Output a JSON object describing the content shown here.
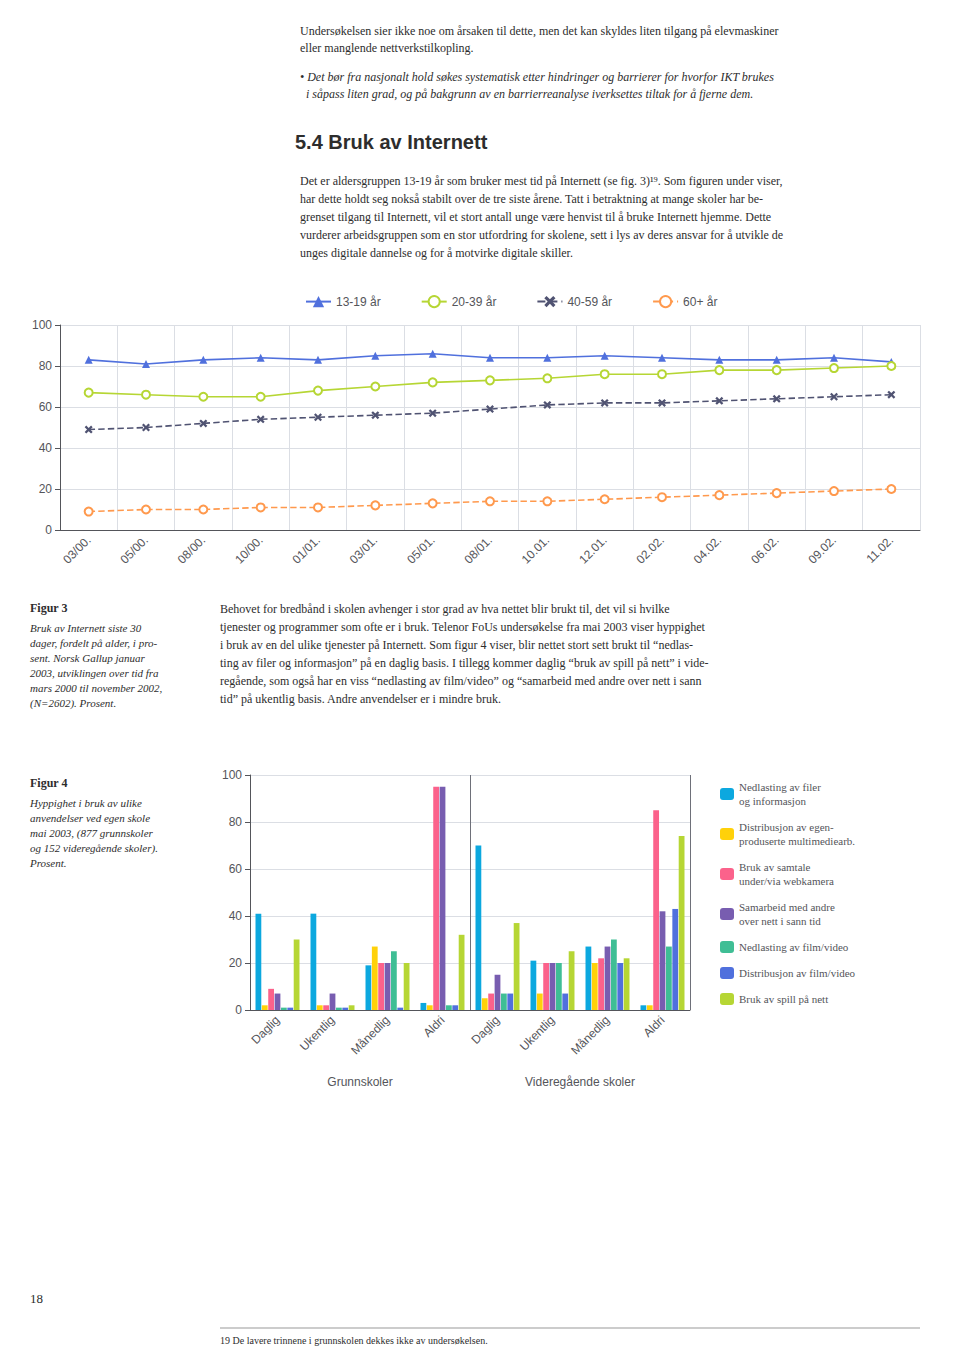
{
  "chart_data": [
    {
      "type": "line",
      "title": "Figur 3",
      "subtitle": "Bruk av Internett siste 30\ndager, fordelt på alder, i pro-\nsent. Norsk Gallup januar\n2003, utviklingen over tid fra\nmars 2000 til november 2002,\n(N=2602). Prosent.",
      "annotations": [
        "Undersøkelsen sier ikke noe om årsaken til dette, men det kan skyldes liten tilgang på elevmaskiner\neller manglende nettverkstilkopling.",
        "• Det bør fra nasjonalt hold søkes systematisk etter hindringer og barrierer for hvorfor IKT brukes\n  i såpass liten grad, og på bakgrunn av en barrierreanalyse iverksettes tiltak for å fjerne dem.",
        "5.4 Bruk av Internett",
        "Det er aldersgruppen 13-19 år som bruker mest tid på Internett (se fig. 3)¹⁹. Som figuren under viser,\nhar dette holdt seg nokså stabilt over de tre siste årene. Tatt i betraktning at mange skoler har be-\ngrenset tilgang til Internett, vil et stort antall unge være henvist til å bruke Internett hjemme. Dette\nvurderer arbeidsgruppen som en stor utfordring for skolene, sett i lys av deres ansvar for å utvikle de\nunges digitale dannelse og for å motvirke digitale skiller.",
        "Behovet for bredbånd i skolen avhenger i stor grad av hva nettet blir brukt til, det vil si hvilke\ntjenester og programmer som ofte er i bruk. Telenor FoUs undersøkelse fra mai 2003 viser hyppighet\ni bruk av en del ulike tjenester på Internett. Som figur 4 viser, blir nettet stort sett brukt til “nedlas-\nting av filer og informasjon” på en daglig basis. I tillegg kommer daglig “bruk av spill på nett” i vide-\nregående, som også har en viss “nedlasting av film/video” og “samarbeid med andre over nett i sann\ntid” på ukentlig basis. Andre anvendelser er i mindre bruk."
      ],
      "categories": [
        "03/00.",
        "05/00.",
        "08/00.",
        "10/00.",
        "01/01.",
        "03/01.",
        "05/01.",
        "08/01.",
        "10.01.",
        "12.01.",
        "02.02.",
        "04.02.",
        "06.02.",
        "09.02.",
        "11.02."
      ],
      "series": [
        {
          "name": "13-19 år",
          "marker": "triangle",
          "line_style": "solid",
          "values": [
            83,
            81,
            83,
            84,
            83,
            85,
            86,
            84,
            84,
            85,
            84,
            83,
            83,
            84,
            82
          ]
        },
        {
          "name": "20-39 år",
          "marker": "circle",
          "line_style": "solid",
          "values": [
            67,
            66,
            65,
            65,
            68,
            70,
            72,
            73,
            74,
            76,
            76,
            78,
            78,
            79,
            80
          ]
        },
        {
          "name": "40-59 år",
          "marker": "x",
          "line_style": "dashed",
          "values": [
            49,
            50,
            52,
            54,
            55,
            56,
            57,
            59,
            61,
            62,
            62,
            63,
            64,
            65,
            66
          ]
        },
        {
          "name": "60+ år",
          "marker": "circle",
          "line_style": "dashed",
          "values": [
            9,
            10,
            10,
            11,
            11,
            12,
            13,
            14,
            14,
            15,
            16,
            17,
            18,
            19,
            20
          ]
        }
      ],
      "ylim": [
        0,
        100
      ],
      "yticks": [
        0,
        20,
        40,
        60,
        80,
        100
      ],
      "grid": true,
      "legend": "top"
    },
    {
      "type": "bar",
      "title": "Figur 4",
      "subtitle": "Hyppighet i bruk av ulike\nanvendelser ved egen skole\nmai 2003, (877 grunnskoler\nog 152 videregående skoler).\nProsent.",
      "annotations": [
        "18",
        "19 De lavere trinnene i grunnskolen dekkes ikke av undersøkelsen."
      ],
      "categories": [
        "Daglig",
        "Ukentlig",
        "Månedlig",
        "Aldri",
        "Daglig",
        "Ukentlig",
        "Månedlig",
        "Aldri"
      ],
      "groups": [
        "Grunnskoler",
        "Videregående skoler"
      ],
      "series": [
        {
          "name": "Nedlasting av filer\nog informasjon",
          "values": [
            41,
            41,
            19,
            3,
            70,
            21,
            27,
            2
          ]
        },
        {
          "name": "Distribusjon av egen-\nproduserte multimediearb.",
          "values": [
            2,
            2,
            27,
            2,
            5,
            7,
            20,
            2
          ]
        },
        {
          "name": "Bruk av samtale\nunder/via webkamera",
          "values": [
            9,
            2,
            20,
            95,
            7,
            20,
            22,
            85
          ]
        },
        {
          "name": "Samarbeid med andre\nover nett i sann tid",
          "values": [
            7,
            7,
            20,
            95,
            15,
            20,
            27,
            42
          ]
        },
        {
          "name": "Nedlasting av film/video",
          "values": [
            1,
            1,
            25,
            2,
            7,
            20,
            30,
            27
          ]
        },
        {
          "name": "Distribusjon av film/video",
          "values": [
            1,
            1,
            1,
            2,
            7,
            7,
            20,
            43
          ]
        },
        {
          "name": "Bruk av spill på nett",
          "values": [
            30,
            2,
            20,
            32,
            37,
            25,
            22,
            74
          ]
        }
      ],
      "ylim": [
        0,
        100
      ],
      "yticks": [
        0,
        20,
        40,
        60,
        80,
        100
      ],
      "grid": true,
      "legend": "right"
    }
  ]
}
